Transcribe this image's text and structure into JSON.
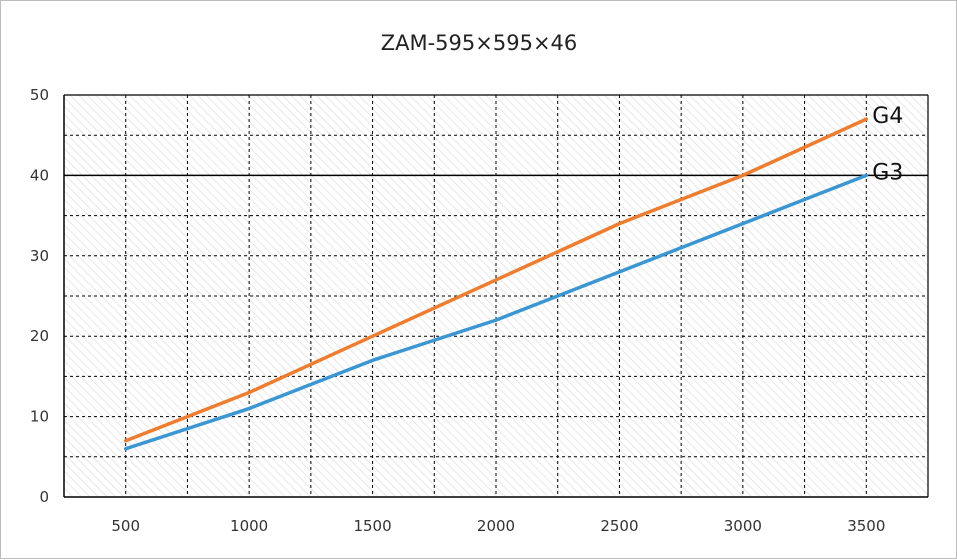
{
  "chart_data": {
    "type": "line",
    "title": "ZAM-595×595×46",
    "xlabel": "",
    "ylabel": "",
    "x": [
      500,
      1000,
      1500,
      2000,
      2500,
      3000,
      3500
    ],
    "xlim": [
      250,
      3750
    ],
    "ylim": [
      0,
      50
    ],
    "yticks": [
      0,
      10,
      20,
      30,
      40,
      50
    ],
    "grid": true,
    "legend": "inline labels at line ends",
    "series": [
      {
        "name": "G4",
        "color": "#ED7D31",
        "values": [
          7,
          13,
          20,
          27,
          34,
          40,
          47
        ]
      },
      {
        "name": "G3",
        "color": "#3C96D2",
        "values": [
          6,
          11,
          17,
          22,
          28,
          34,
          40
        ]
      }
    ]
  }
}
